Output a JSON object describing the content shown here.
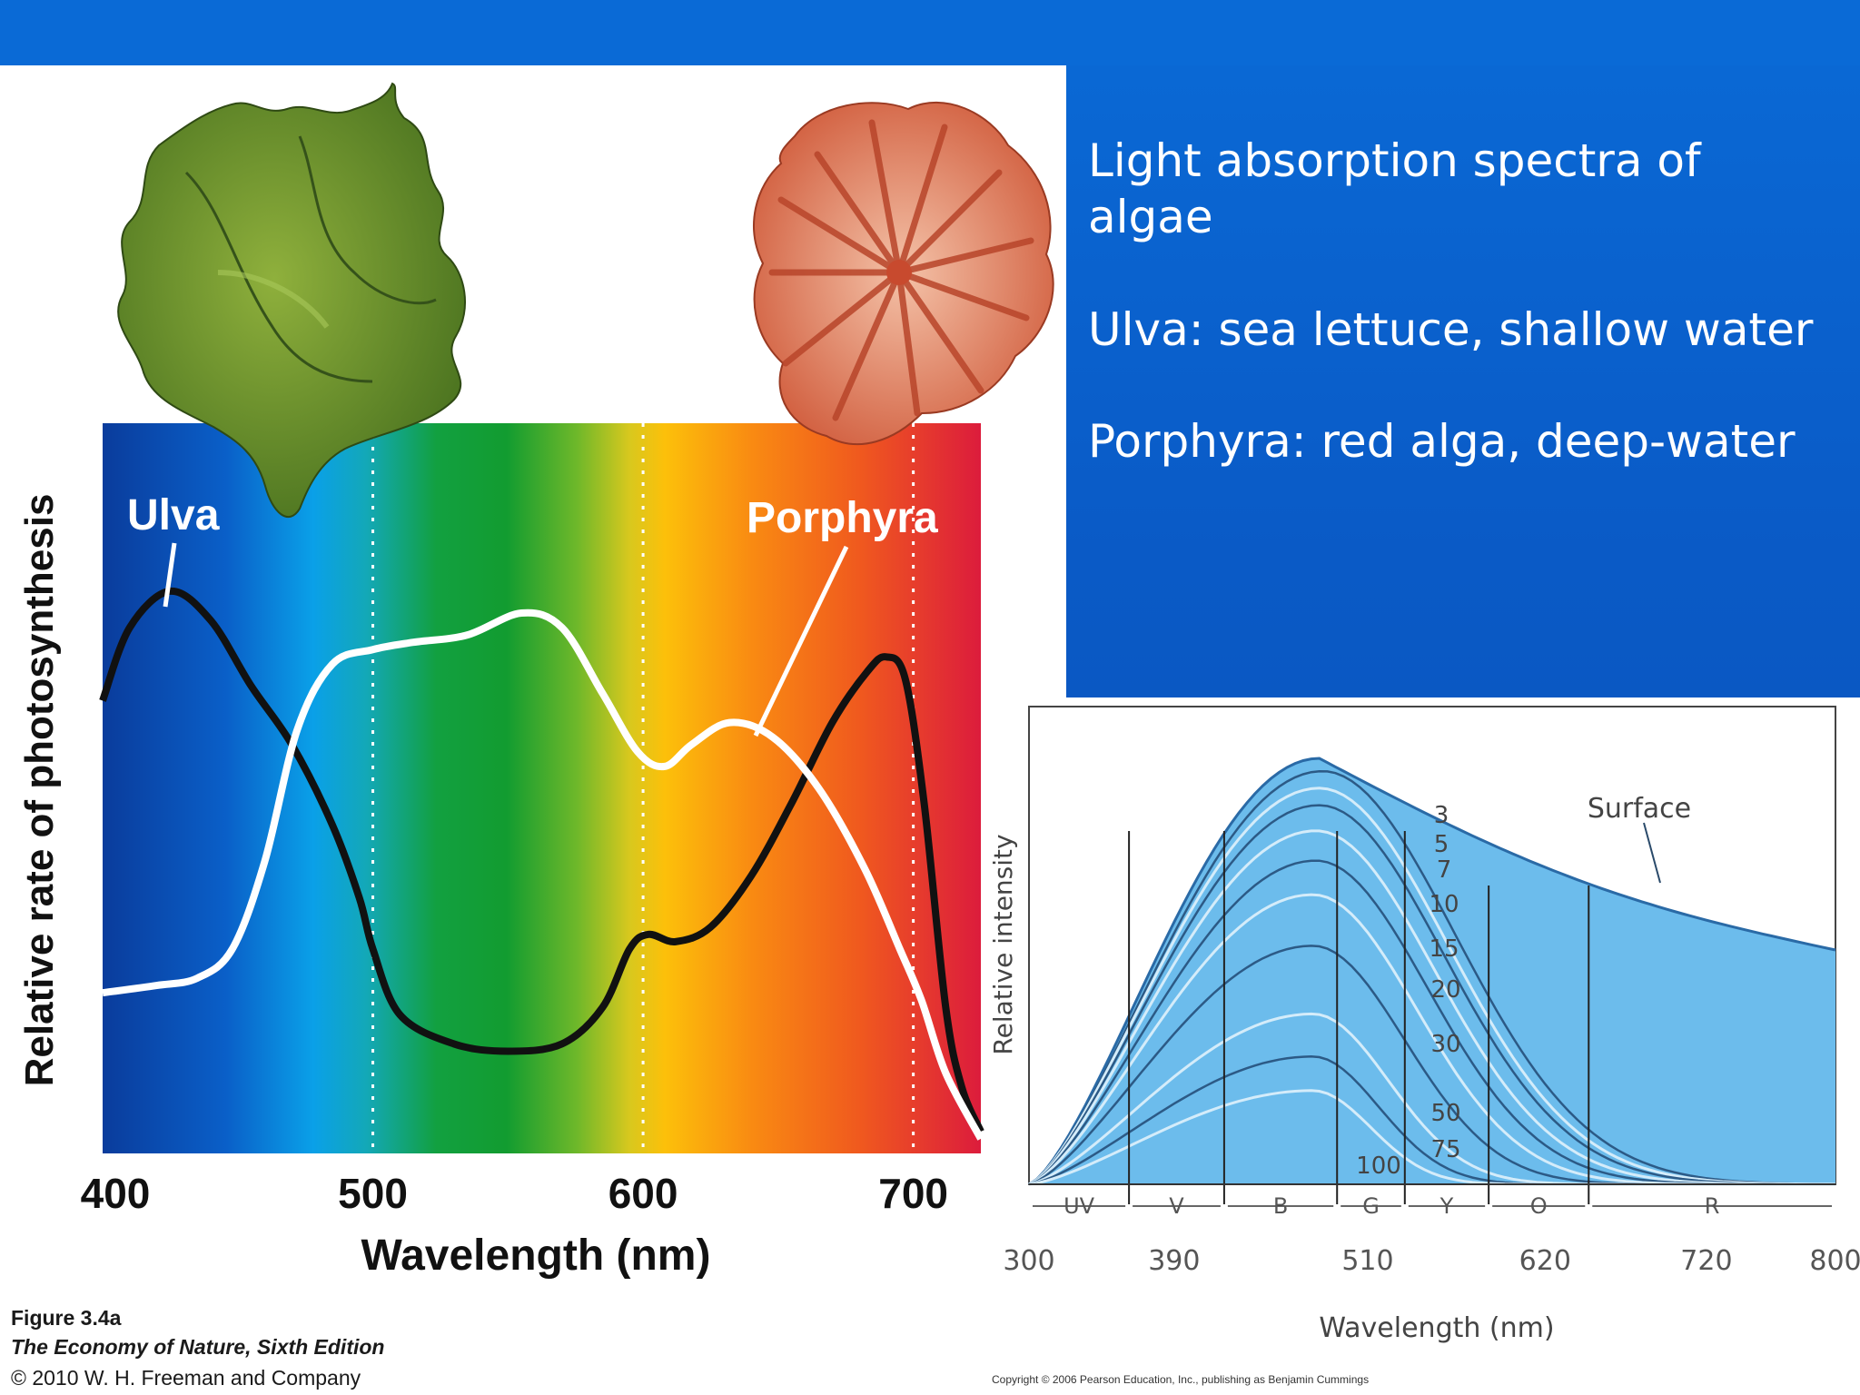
{
  "slide": {
    "title": "Light absorption spectra of\nalgae",
    "line_ulva": "Ulva: sea lettuce, shallow water",
    "line_porphyra": "Porphyra: red alga, deep-water"
  },
  "figure_caption": {
    "figure_label": "Figure 3.4a",
    "book": "The Economy of Nature, Sixth Edition",
    "copyright": "© 2010 W. H. Freeman and Company"
  },
  "right_copyright": "Copyright © 2006 Pearson Education, Inc., publishing as Benjamin Cummings",
  "chart_data": [
    {
      "type": "line",
      "title": "",
      "xlabel": "Wavelength (nm)",
      "ylabel": "Relative rate of photosynthesis",
      "xlim": [
        400,
        725
      ],
      "ylim": [
        0,
        1
      ],
      "xticks": [
        400,
        500,
        600,
        700
      ],
      "grid_lines_x": [
        500,
        600,
        700
      ],
      "background": "visible spectrum gradient",
      "series": [
        {
          "name": "Ulva",
          "color": "#111111",
          "points": [
            [
              400,
              0.62
            ],
            [
              410,
              0.72
            ],
            [
              425,
              0.77
            ],
            [
              440,
              0.73
            ],
            [
              455,
              0.64
            ],
            [
              470,
              0.56
            ],
            [
              485,
              0.45
            ],
            [
              495,
              0.35
            ],
            [
              500,
              0.28
            ],
            [
              510,
              0.19
            ],
            [
              530,
              0.15
            ],
            [
              550,
              0.14
            ],
            [
              570,
              0.15
            ],
            [
              585,
              0.2
            ],
            [
              595,
              0.28
            ],
            [
              602,
              0.3
            ],
            [
              612,
              0.29
            ],
            [
              625,
              0.31
            ],
            [
              640,
              0.38
            ],
            [
              655,
              0.48
            ],
            [
              670,
              0.59
            ],
            [
              683,
              0.66
            ],
            [
              690,
              0.68
            ],
            [
              697,
              0.65
            ],
            [
              704,
              0.48
            ],
            [
              712,
              0.2
            ],
            [
              718,
              0.09
            ],
            [
              725,
              0.03
            ]
          ]
        },
        {
          "name": "Porphyra",
          "color": "#ffffff",
          "points": [
            [
              400,
              0.22
            ],
            [
              420,
              0.23
            ],
            [
              435,
              0.24
            ],
            [
              448,
              0.28
            ],
            [
              460,
              0.4
            ],
            [
              472,
              0.58
            ],
            [
              485,
              0.67
            ],
            [
              500,
              0.69
            ],
            [
              515,
              0.7
            ],
            [
              535,
              0.71
            ],
            [
              555,
              0.74
            ],
            [
              570,
              0.72
            ],
            [
              585,
              0.63
            ],
            [
              598,
              0.55
            ],
            [
              608,
              0.53
            ],
            [
              618,
              0.56
            ],
            [
              632,
              0.59
            ],
            [
              648,
              0.57
            ],
            [
              665,
              0.5
            ],
            [
              682,
              0.39
            ],
            [
              695,
              0.28
            ],
            [
              703,
              0.21
            ],
            [
              712,
              0.11
            ],
            [
              725,
              0.02
            ]
          ]
        }
      ],
      "annotations": [
        "Ulva",
        "Porphyra"
      ]
    },
    {
      "type": "area",
      "title": "",
      "xlabel": "Wavelength (nm)",
      "ylabel": "Relative intensity",
      "xlim": [
        300,
        800
      ],
      "xticks": [
        300,
        390,
        510,
        620,
        720,
        800
      ],
      "bands": [
        {
          "label": "UV",
          "from": 300,
          "to": 362
        },
        {
          "label": "V",
          "from": 362,
          "to": 421
        },
        {
          "label": "B",
          "from": 421,
          "to": 491
        },
        {
          "label": "G",
          "from": 491,
          "to": 533
        },
        {
          "label": "Y",
          "from": 533,
          "to": 585
        },
        {
          "label": "O",
          "from": 585,
          "to": 647
        },
        {
          "label": "R",
          "from": 647,
          "to": 800
        }
      ],
      "depth_labels": [
        "3",
        "5",
        "7",
        "10",
        "15",
        "20",
        "30",
        "50",
        "75",
        "100"
      ],
      "surface_label": "Surface",
      "series": [
        {
          "name": "Surface",
          "peak_nm": 480,
          "peak": 1.0,
          "tail": 0.55
        },
        {
          "name": "3",
          "peak_nm": 482,
          "peak": 0.97,
          "tail": 0.0
        },
        {
          "name": "5",
          "peak_nm": 480,
          "peak": 0.93,
          "tail": 0.0
        },
        {
          "name": "7",
          "peak_nm": 480,
          "peak": 0.89,
          "tail": 0.0
        },
        {
          "name": "10",
          "peak_nm": 478,
          "peak": 0.83,
          "tail": 0.0
        },
        {
          "name": "15",
          "peak_nm": 478,
          "peak": 0.76,
          "tail": 0.0
        },
        {
          "name": "20",
          "peak_nm": 476,
          "peak": 0.68,
          "tail": 0.0
        },
        {
          "name": "30",
          "peak_nm": 476,
          "peak": 0.56,
          "tail": 0.0
        },
        {
          "name": "50",
          "peak_nm": 476,
          "peak": 0.4,
          "tail": 0.0
        },
        {
          "name": "75",
          "peak_nm": 476,
          "peak": 0.3,
          "tail": 0.0
        },
        {
          "name": "100",
          "peak_nm": 476,
          "peak": 0.22,
          "tail": 0.0
        }
      ]
    }
  ]
}
